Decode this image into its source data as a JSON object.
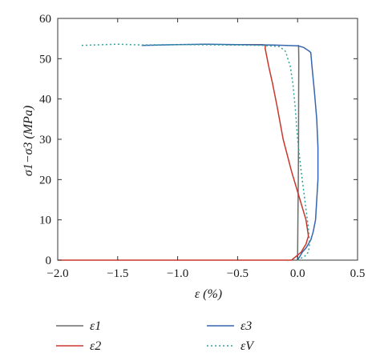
{
  "chart_data": {
    "type": "line",
    "title": "",
    "xlabel": "ε (%)",
    "ylabel": "σ1−σ3 (MPa)",
    "xlim": [
      -2.0,
      0.5
    ],
    "ylim": [
      0,
      60
    ],
    "xticks": [
      -2.0,
      -1.5,
      -1.0,
      -0.5,
      0.0,
      0.5
    ],
    "xtick_labels": [
      "−2.0",
      "−1.5",
      "−1.0",
      "−0.5",
      "0.0",
      "0.5"
    ],
    "yticks": [
      0,
      10,
      20,
      30,
      40,
      50,
      60
    ],
    "ytick_labels": [
      "0",
      "10",
      "20",
      "30",
      "40",
      "50",
      "60"
    ],
    "grid": false,
    "legend_position": "bottom",
    "series": [
      {
        "name": "ε1",
        "color": "#6b6b6b",
        "style": "solid",
        "x": [
          0.0,
          0.003,
          0.006,
          0.008,
          0.009,
          0.01,
          0.008
        ],
        "y": [
          0,
          10,
          20,
          30,
          40,
          50,
          53.4
        ]
      },
      {
        "name": "ε2",
        "color": "#c8372d",
        "style": "solid",
        "x": [
          -2.0,
          -0.3,
          -0.05,
          0.03,
          0.07,
          0.09,
          0.07,
          0.02,
          -0.05,
          -0.12,
          -0.17,
          -0.21,
          -0.24,
          -0.26,
          -0.27,
          -0.27,
          -0.3,
          -0.6
        ],
        "y": [
          0,
          0,
          0,
          2,
          4,
          6,
          10,
          15,
          22,
          30,
          38,
          44,
          48,
          51,
          52.5,
          53.4,
          53.5,
          53.5
        ]
      },
      {
        "name": "ε3",
        "color": "#3566b0",
        "style": "solid",
        "x": [
          -1.3,
          -1.0,
          -0.75,
          -0.5,
          -0.2,
          0.0,
          0.05,
          0.1,
          0.11,
          0.12,
          0.14,
          0.16,
          0.17,
          0.17,
          0.16,
          0.15,
          0.13,
          0.11,
          0.07,
          0.04,
          0.02,
          0.0
        ],
        "y": [
          53.3,
          53.5,
          53.6,
          53.5,
          53.4,
          53.2,
          52.8,
          51.8,
          51.5,
          48,
          42,
          35,
          28,
          20,
          15,
          10,
          7,
          5,
          3,
          2,
          1,
          0
        ]
      },
      {
        "name": "εV",
        "color": "#2aa39a",
        "style": "dotted",
        "x": [
          -1.8,
          -1.5,
          -1.3,
          -1.0,
          -0.6,
          -0.3,
          -0.15,
          -0.1,
          -0.06,
          -0.04,
          -0.02,
          0.0,
          0.03,
          0.06,
          0.09,
          0.1,
          0.09,
          0.06,
          0.03,
          0.01,
          0.0
        ],
        "y": [
          53.3,
          53.6,
          53.4,
          53.5,
          53.4,
          53.3,
          53.0,
          51.8,
          48,
          44,
          38,
          30,
          22,
          15,
          8,
          4,
          2,
          1,
          0.5,
          0.2,
          0
        ]
      }
    ]
  }
}
